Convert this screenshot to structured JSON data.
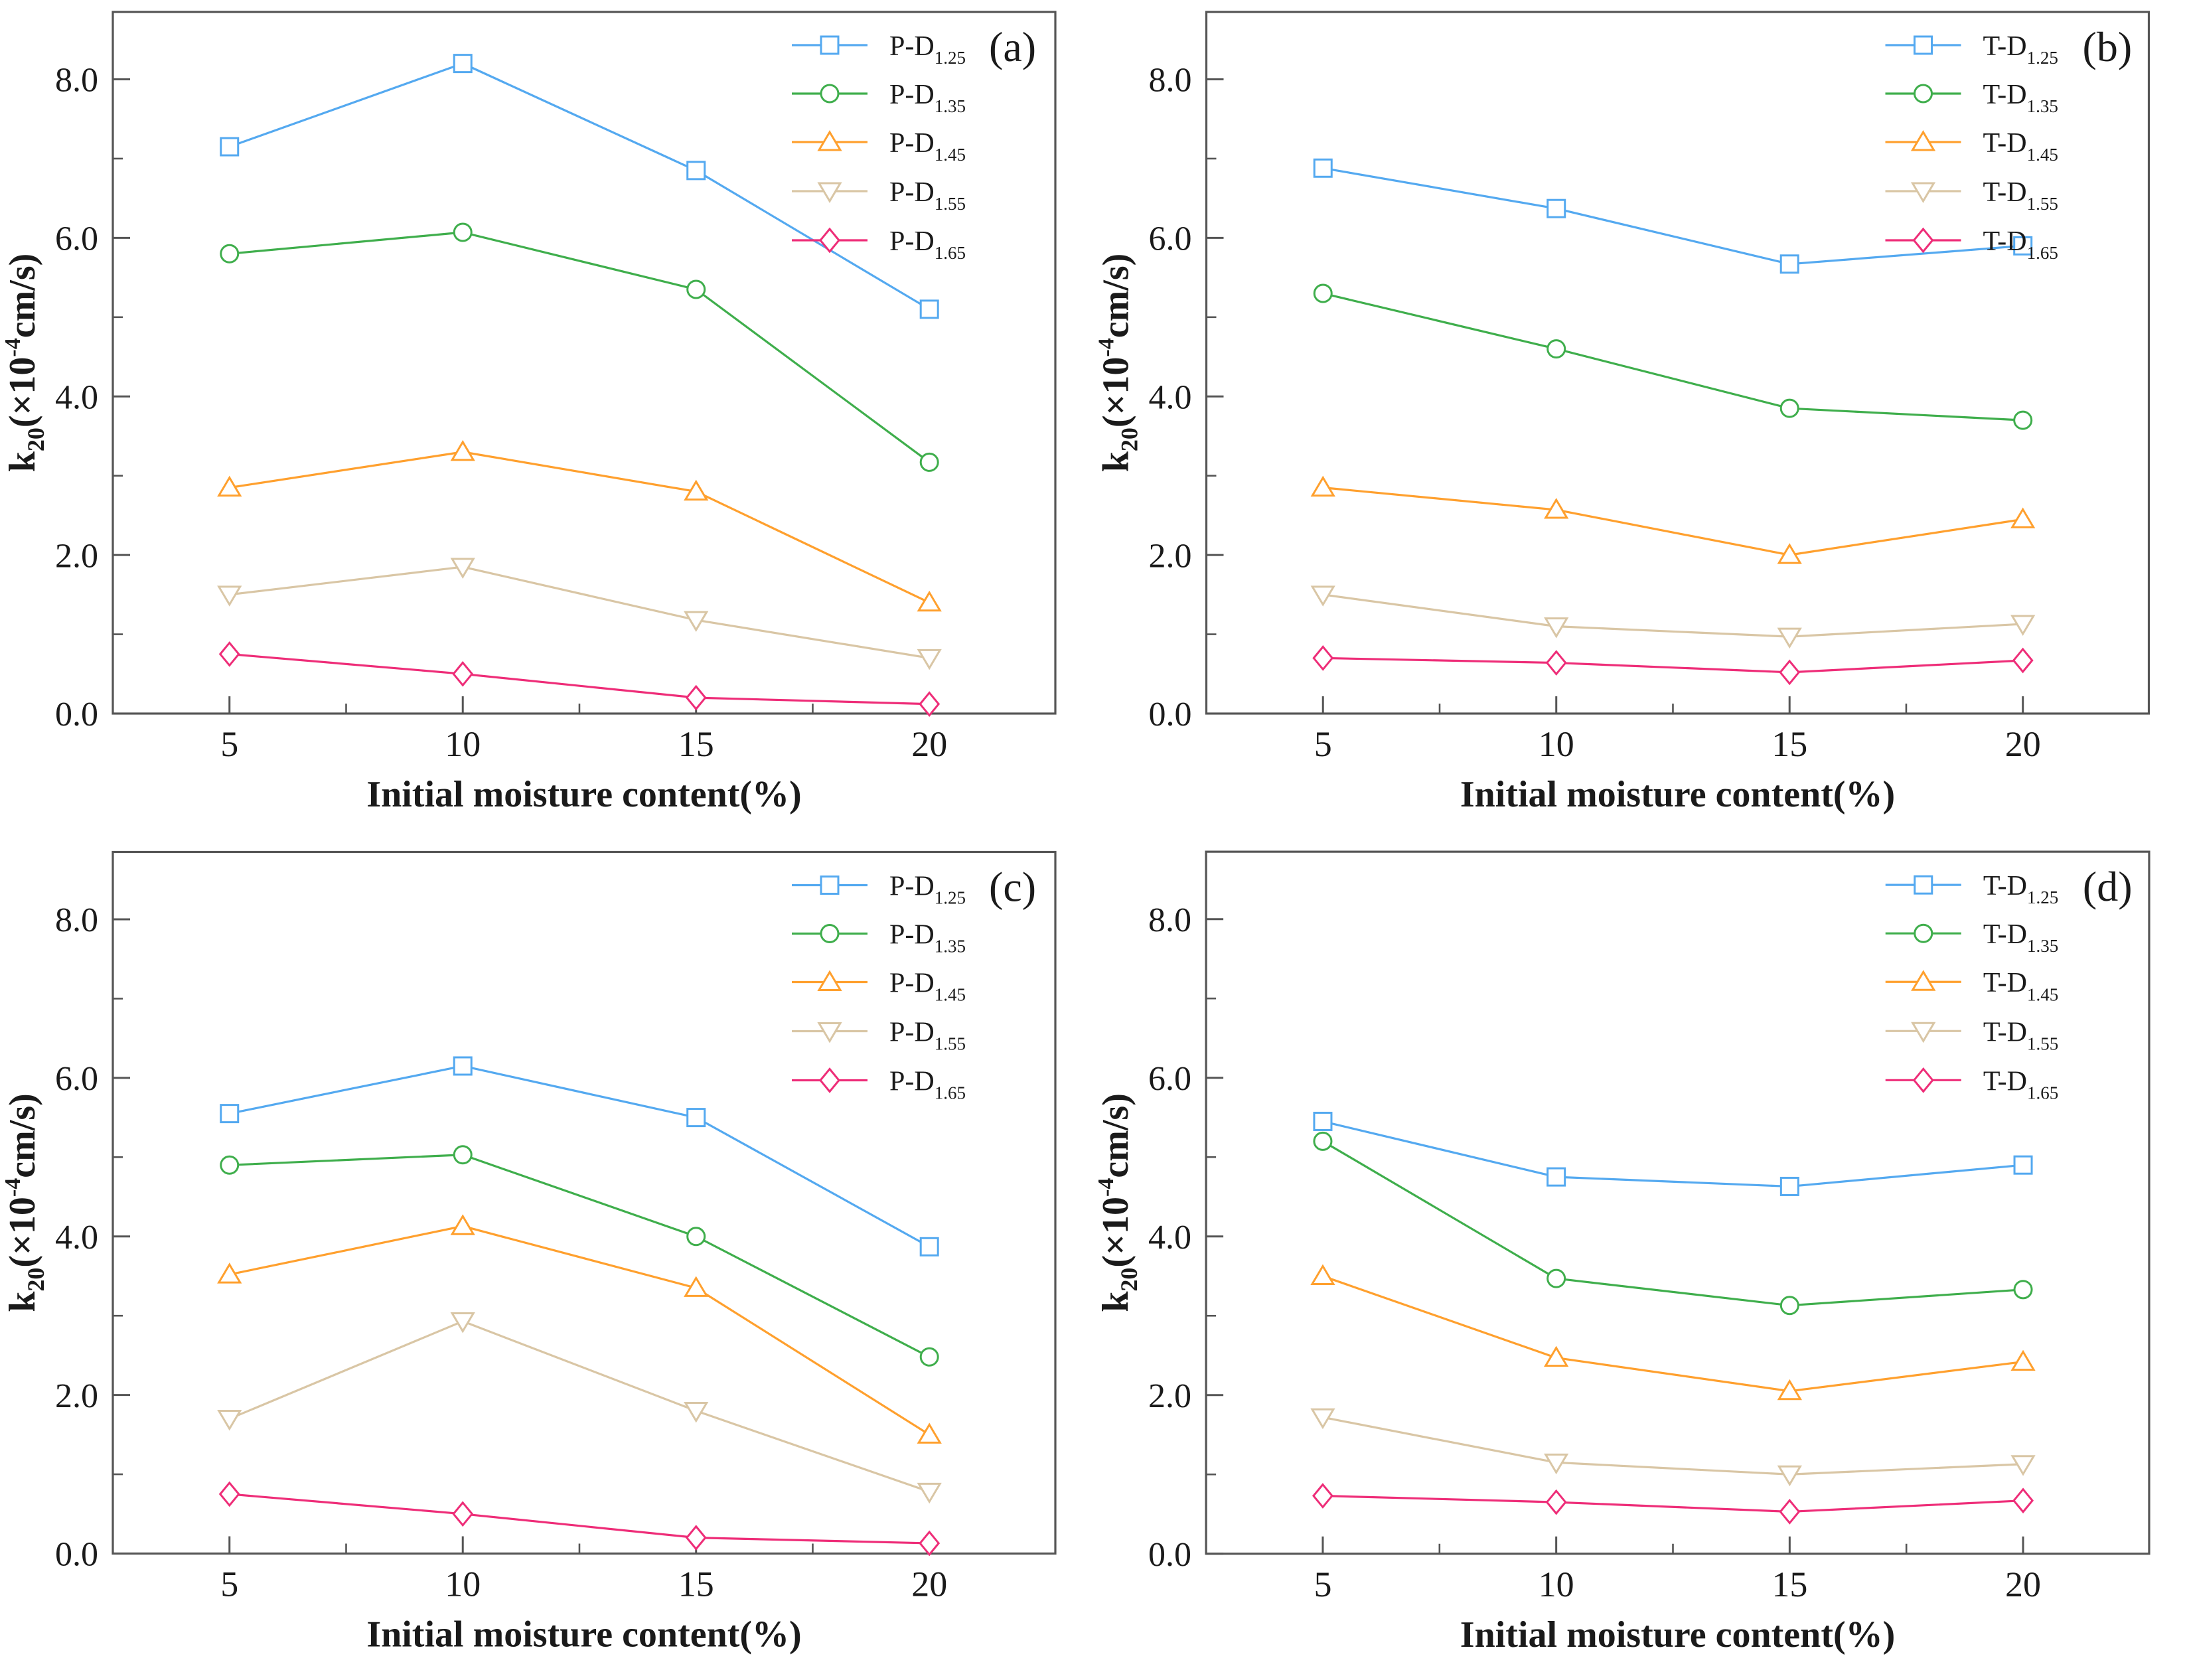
{
  "figure": {
    "background": "#ffffff",
    "axis_color": "#555555",
    "text_color": "#1a1a1a",
    "xlabel": "Initial moisture content(%)",
    "ylabel_parts": {
      "base": "k",
      "sub": "20",
      "mid": "(×10",
      "sup": "-4",
      "end": "cm/s)"
    },
    "series_colors": {
      "d125": "#54a9f0",
      "d135": "#3fae4c",
      "d145": "#ffa02e",
      "d155": "#d9c6a5",
      "d165": "#ee2d78"
    },
    "marker_shapes": {
      "d125": "square",
      "d135": "circle",
      "d145": "triangle-up",
      "d155": "triangle-down",
      "d165": "diamond"
    }
  },
  "chart_data": [
    {
      "type": "line",
      "panel_label": "(a)",
      "xlabel": "Initial moisture content(%)",
      "ylabel": "k20(×10-4cm/s)",
      "x": [
        5,
        10,
        15,
        20
      ],
      "xlim": [
        2.5,
        22.7
      ],
      "ylim": [
        0,
        8.85
      ],
      "x_ticks": [
        5,
        10,
        15,
        20
      ],
      "x_minor_ticks": [
        7.5,
        12.5,
        17.5
      ],
      "y_ticks": [
        0,
        2,
        4,
        6,
        8
      ],
      "y_tick_labels": [
        "0.0",
        "2.0",
        "4.0",
        "6.0",
        "8.0"
      ],
      "y_minor_ticks": [
        1,
        3,
        5,
        7
      ],
      "grid": false,
      "legend_position": "top-right",
      "series": [
        {
          "name": "P-D1.25",
          "label_base": "P-D",
          "label_sub": "1.25",
          "marker": "square",
          "color": "#54a9f0",
          "values": [
            7.15,
            8.2,
            6.85,
            5.1
          ]
        },
        {
          "name": "P-D1.35",
          "label_base": "P-D",
          "label_sub": "1.35",
          "marker": "circle",
          "color": "#3fae4c",
          "values": [
            5.8,
            6.07,
            5.35,
            3.17
          ]
        },
        {
          "name": "P-D1.45",
          "label_base": "P-D",
          "label_sub": "1.45",
          "marker": "triangle-up",
          "color": "#ffa02e",
          "values": [
            2.85,
            3.3,
            2.8,
            1.4
          ]
        },
        {
          "name": "P-D1.55",
          "label_base": "P-D",
          "label_sub": "1.55",
          "marker": "triangle-down",
          "color": "#d9c6a5",
          "values": [
            1.5,
            1.85,
            1.18,
            0.7
          ]
        },
        {
          "name": "P-D1.65",
          "label_base": "P-D",
          "label_sub": "1.65",
          "marker": "diamond",
          "color": "#ee2d78",
          "values": [
            0.75,
            0.5,
            0.2,
            0.12
          ]
        }
      ]
    },
    {
      "type": "line",
      "panel_label": "(b)",
      "xlabel": "Initial moisture content(%)",
      "ylabel": "k20(×10-4cm/s)",
      "x": [
        5,
        10,
        15,
        20
      ],
      "xlim": [
        2.5,
        22.7
      ],
      "ylim": [
        0,
        8.85
      ],
      "x_ticks": [
        5,
        10,
        15,
        20
      ],
      "x_minor_ticks": [
        7.5,
        12.5,
        17.5
      ],
      "y_ticks": [
        0,
        2,
        4,
        6,
        8
      ],
      "y_tick_labels": [
        "0.0",
        "2.0",
        "4.0",
        "6.0",
        "8.0"
      ],
      "y_minor_ticks": [
        1,
        3,
        5,
        7
      ],
      "grid": false,
      "legend_position": "top-right",
      "series": [
        {
          "name": "T-D1.25",
          "label_base": "T-D",
          "label_sub": "1.25",
          "marker": "square",
          "color": "#54a9f0",
          "values": [
            6.88,
            6.37,
            5.67,
            5.9
          ]
        },
        {
          "name": "T-D1.35",
          "label_base": "T-D",
          "label_sub": "1.35",
          "marker": "circle",
          "color": "#3fae4c",
          "values": [
            5.3,
            4.6,
            3.85,
            3.7
          ]
        },
        {
          "name": "T-D1.45",
          "label_base": "T-D",
          "label_sub": "1.45",
          "marker": "triangle-up",
          "color": "#ffa02e",
          "values": [
            2.85,
            2.57,
            2.0,
            2.45
          ]
        },
        {
          "name": "T-D1.55",
          "label_base": "T-D",
          "label_sub": "1.55",
          "marker": "triangle-down",
          "color": "#d9c6a5",
          "values": [
            1.5,
            1.1,
            0.97,
            1.13
          ]
        },
        {
          "name": "T-D1.65",
          "label_base": "T-D",
          "label_sub": "1.65",
          "marker": "diamond",
          "color": "#ee2d78",
          "values": [
            0.7,
            0.64,
            0.52,
            0.67
          ]
        }
      ]
    },
    {
      "type": "line",
      "panel_label": "(c)",
      "xlabel": "Initial moisture content(%)",
      "ylabel": "k20(×10-4cm/s)",
      "x": [
        5,
        10,
        15,
        20
      ],
      "xlim": [
        2.5,
        22.7
      ],
      "ylim": [
        0,
        8.85
      ],
      "x_ticks": [
        5,
        10,
        15,
        20
      ],
      "x_minor_ticks": [
        7.5,
        12.5,
        17.5
      ],
      "y_ticks": [
        0,
        2,
        4,
        6,
        8
      ],
      "y_tick_labels": [
        "0.0",
        "2.0",
        "4.0",
        "6.0",
        "8.0"
      ],
      "y_minor_ticks": [
        1,
        3,
        5,
        7
      ],
      "grid": false,
      "legend_position": "top-right",
      "series": [
        {
          "name": "P-D1.25",
          "label_base": "P-D",
          "label_sub": "1.25",
          "marker": "square",
          "color": "#54a9f0",
          "values": [
            5.55,
            6.15,
            5.5,
            3.87
          ]
        },
        {
          "name": "P-D1.35",
          "label_base": "P-D",
          "label_sub": "1.35",
          "marker": "circle",
          "color": "#3fae4c",
          "values": [
            4.9,
            5.03,
            4.0,
            2.48
          ]
        },
        {
          "name": "P-D1.45",
          "label_base": "P-D",
          "label_sub": "1.45",
          "marker": "triangle-up",
          "color": "#ffa02e",
          "values": [
            3.52,
            4.13,
            3.35,
            1.5
          ]
        },
        {
          "name": "P-D1.55",
          "label_base": "P-D",
          "label_sub": "1.55",
          "marker": "triangle-down",
          "color": "#d9c6a5",
          "values": [
            1.7,
            2.93,
            1.8,
            0.78
          ]
        },
        {
          "name": "P-D1.65",
          "label_base": "P-D",
          "label_sub": "1.65",
          "marker": "diamond",
          "color": "#ee2d78",
          "values": [
            0.75,
            0.5,
            0.2,
            0.13
          ]
        }
      ]
    },
    {
      "type": "line",
      "panel_label": "(d)",
      "xlabel": "Initial moisture content(%)",
      "ylabel": "k20(×10-4cm/s)",
      "x": [
        5,
        10,
        15,
        20
      ],
      "xlim": [
        2.5,
        22.7
      ],
      "ylim": [
        0,
        8.85
      ],
      "x_ticks": [
        5,
        10,
        15,
        20
      ],
      "x_minor_ticks": [
        7.5,
        12.5,
        17.5
      ],
      "y_ticks": [
        0,
        2,
        4,
        6,
        8
      ],
      "y_tick_labels": [
        "0.0",
        "2.0",
        "4.0",
        "6.0",
        "8.0"
      ],
      "y_minor_ticks": [
        1,
        3,
        5,
        7
      ],
      "grid": false,
      "legend_position": "top-right",
      "series": [
        {
          "name": "T-D1.25",
          "label_base": "T-D",
          "label_sub": "1.25",
          "marker": "square",
          "color": "#54a9f0",
          "values": [
            5.45,
            4.75,
            4.63,
            4.9
          ]
        },
        {
          "name": "T-D1.35",
          "label_base": "T-D",
          "label_sub": "1.35",
          "marker": "circle",
          "color": "#3fae4c",
          "values": [
            5.2,
            3.47,
            3.13,
            3.33
          ]
        },
        {
          "name": "T-D1.45",
          "label_base": "T-D",
          "label_sub": "1.45",
          "marker": "triangle-up",
          "color": "#ffa02e",
          "values": [
            3.5,
            2.47,
            2.05,
            2.42
          ]
        },
        {
          "name": "T-D1.55",
          "label_base": "T-D",
          "label_sub": "1.55",
          "marker": "triangle-down",
          "color": "#d9c6a5",
          "values": [
            1.72,
            1.15,
            1.0,
            1.13
          ]
        },
        {
          "name": "T-D1.65",
          "label_base": "T-D",
          "label_sub": "1.65",
          "marker": "diamond",
          "color": "#ee2d78",
          "values": [
            0.73,
            0.65,
            0.53,
            0.67
          ]
        }
      ]
    }
  ]
}
